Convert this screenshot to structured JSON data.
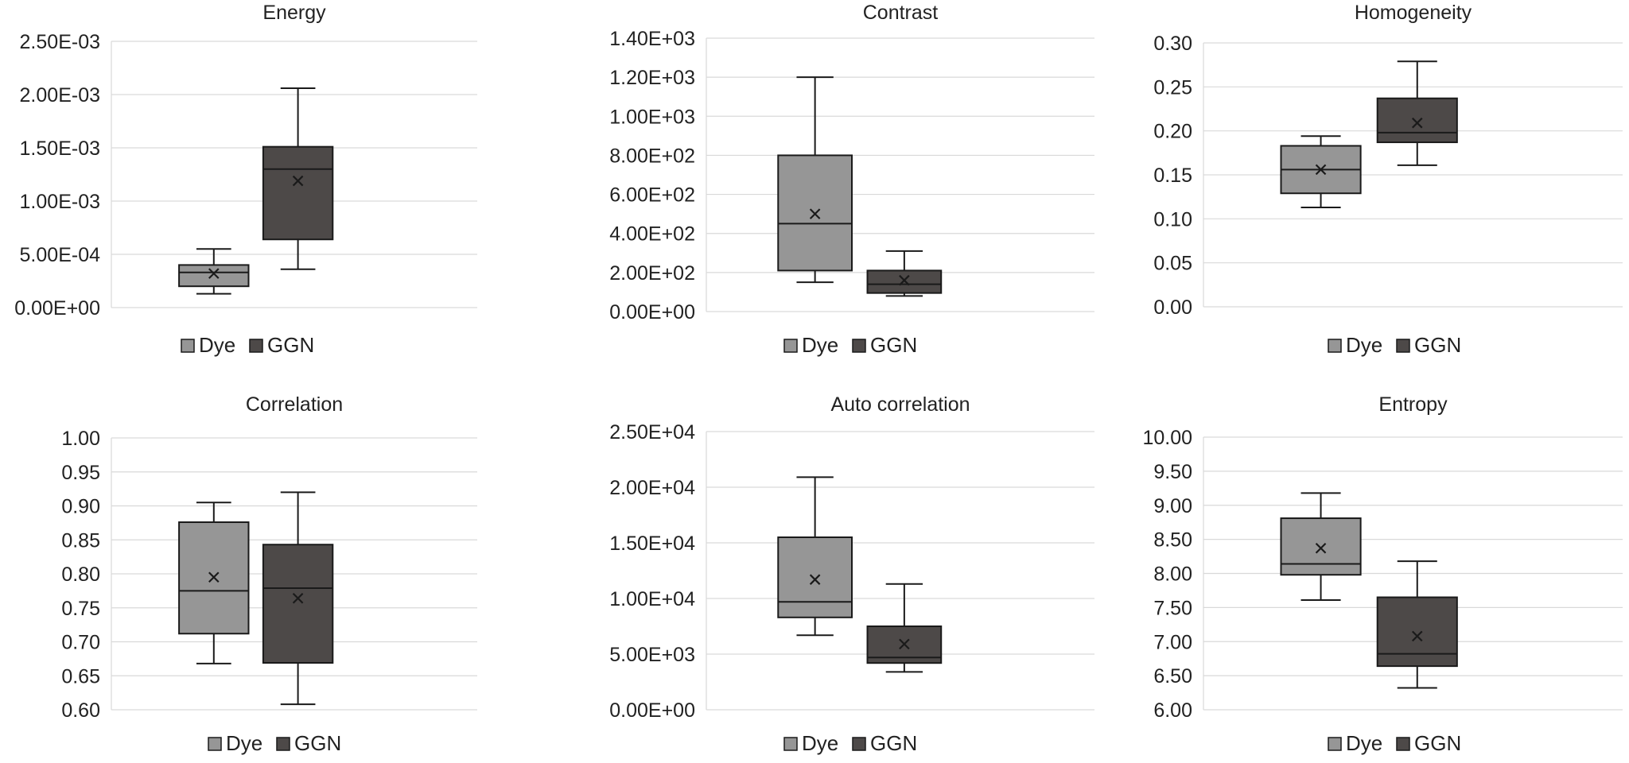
{
  "colors": {
    "dye": "#969696",
    "ggn": "#4d4948",
    "grid": "#d9d9d9",
    "stroke": "#1a1a1a"
  },
  "chart_data": [
    {
      "type": "box",
      "title": "Energy",
      "yticks": [
        "0.00E+00",
        "5.00E-04",
        "1.00E-03",
        "1.50E-03",
        "2.00E-03",
        "2.50E-03"
      ],
      "ylim": [
        0,
        0.0025
      ],
      "legend": [
        "Dye",
        "GGN"
      ],
      "legend_position": "bottom",
      "series": [
        {
          "name": "Dye",
          "min": 0.00013,
          "q1": 0.0002,
          "median": 0.00033,
          "q3": 0.0004,
          "max": 0.00055,
          "mean": 0.00032
        },
        {
          "name": "GGN",
          "min": 0.00036,
          "q1": 0.00064,
          "median": 0.0013,
          "q3": 0.00151,
          "max": 0.00206,
          "mean": 0.00119
        }
      ]
    },
    {
      "type": "box",
      "title": "Contrast",
      "yticks": [
        "0.00E+00",
        "2.00E+02",
        "4.00E+02",
        "6.00E+02",
        "8.00E+02",
        "1.00E+03",
        "1.20E+03",
        "1.40E+03"
      ],
      "ylim": [
        0,
        1400
      ],
      "legend": [
        "Dye",
        "GGN"
      ],
      "legend_position": "bottom",
      "series": [
        {
          "name": "Dye",
          "min": 150,
          "q1": 210,
          "median": 450,
          "q3": 800,
          "max": 1200,
          "mean": 500
        },
        {
          "name": "GGN",
          "min": 80,
          "q1": 95,
          "median": 140,
          "q3": 210,
          "max": 310,
          "mean": 160
        }
      ]
    },
    {
      "type": "box",
      "title": "Homogeneity",
      "yticks": [
        "0.00",
        "0.05",
        "0.10",
        "0.15",
        "0.20",
        "0.25",
        "0.30"
      ],
      "ylim": [
        0,
        0.3
      ],
      "legend": [
        "Dye",
        "GGN"
      ],
      "legend_position": "bottom",
      "series": [
        {
          "name": "Dye",
          "min": 0.113,
          "q1": 0.129,
          "median": 0.156,
          "q3": 0.183,
          "max": 0.194,
          "mean": 0.156
        },
        {
          "name": "GGN",
          "min": 0.161,
          "q1": 0.187,
          "median": 0.198,
          "q3": 0.237,
          "max": 0.279,
          "mean": 0.209
        }
      ]
    },
    {
      "type": "box",
      "title": "Correlation",
      "yticks": [
        "0.60",
        "0.65",
        "0.70",
        "0.75",
        "0.80",
        "0.85",
        "0.90",
        "0.95",
        "1.00"
      ],
      "ylim": [
        0.6,
        1.0
      ],
      "legend": [
        "Dye",
        "GGN"
      ],
      "legend_position": "bottom",
      "series": [
        {
          "name": "Dye",
          "min": 0.668,
          "q1": 0.712,
          "median": 0.775,
          "q3": 0.876,
          "max": 0.905,
          "mean": 0.795
        },
        {
          "name": "GGN",
          "min": 0.608,
          "q1": 0.669,
          "median": 0.779,
          "q3": 0.843,
          "max": 0.92,
          "mean": 0.764
        }
      ]
    },
    {
      "type": "box",
      "title": "Auto correlation",
      "yticks": [
        "0.00E+00",
        "5.00E+03",
        "1.00E+04",
        "1.50E+04",
        "2.00E+04",
        "2.50E+04"
      ],
      "ylim": [
        0,
        25000
      ],
      "legend": [
        "Dye",
        "GGN"
      ],
      "legend_position": "bottom",
      "series": [
        {
          "name": "Dye",
          "min": 6700,
          "q1": 8300,
          "median": 9700,
          "q3": 15500,
          "max": 20900,
          "mean": 11700
        },
        {
          "name": "GGN",
          "min": 3400,
          "q1": 4200,
          "median": 4700,
          "q3": 7500,
          "max": 11300,
          "mean": 5900
        }
      ]
    },
    {
      "type": "box",
      "title": "Entropy",
      "yticks": [
        "6.00",
        "6.50",
        "7.00",
        "7.50",
        "8.00",
        "8.50",
        "9.00",
        "9.50",
        "10.00"
      ],
      "ylim": [
        6.0,
        10.0
      ],
      "legend": [
        "Dye",
        "GGN"
      ],
      "legend_position": "bottom",
      "series": [
        {
          "name": "Dye",
          "min": 7.61,
          "q1": 7.98,
          "median": 8.14,
          "q3": 8.81,
          "max": 9.18,
          "mean": 8.37
        },
        {
          "name": "GGN",
          "min": 6.32,
          "q1": 6.64,
          "median": 6.82,
          "q3": 7.65,
          "max": 8.18,
          "mean": 7.08
        }
      ]
    }
  ]
}
